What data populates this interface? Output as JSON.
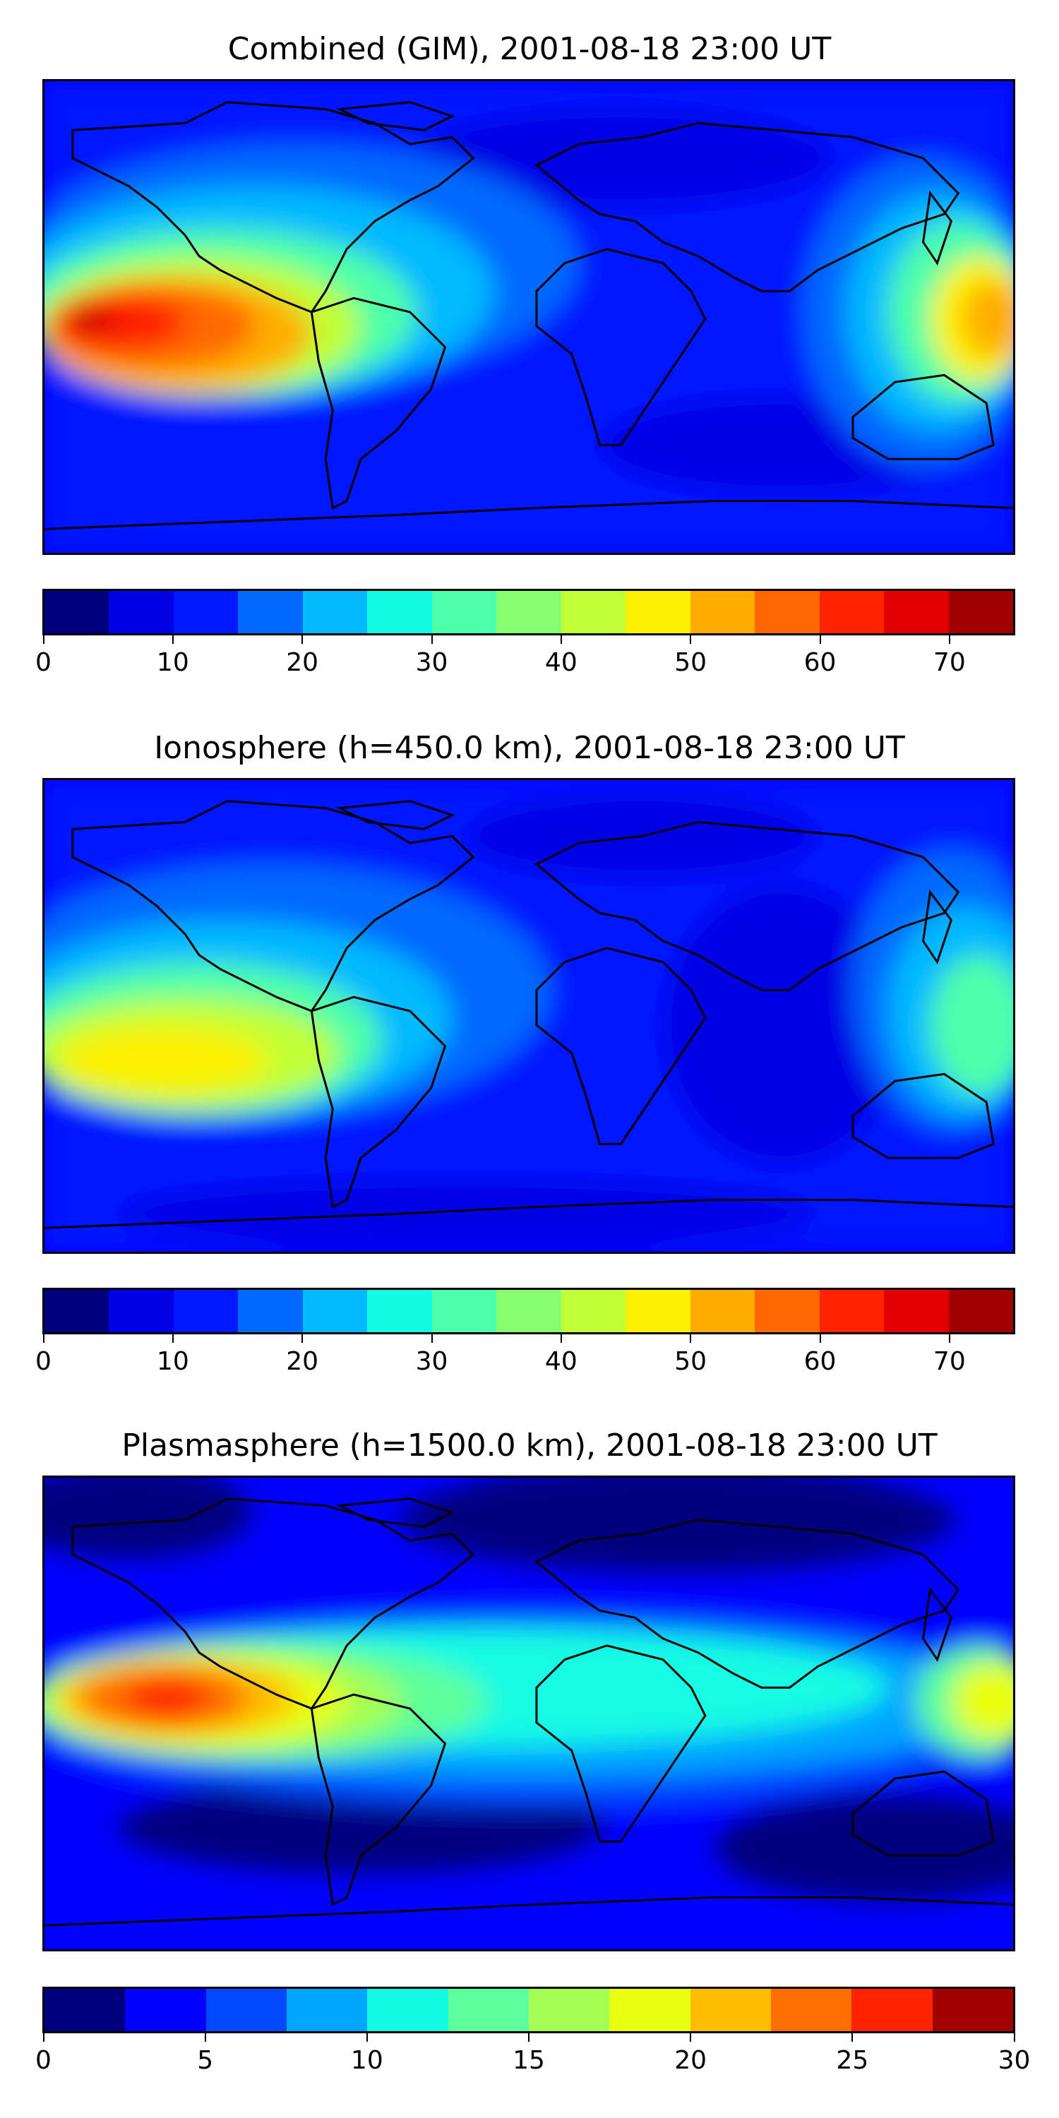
{
  "panels": [
    {
      "title": "Combined (GIM), 2001-08-18 23:00 UT",
      "colorbar": {
        "colors": [
          "#00007f",
          "#0000e5",
          "#0019ff",
          "#0069ff",
          "#00b9ff",
          "#13fbe3",
          "#4dffaa",
          "#87ff70",
          "#c0ff36",
          "#fbf100",
          "#ffad00",
          "#ff6800",
          "#ff2300",
          "#e30000",
          "#9f0000"
        ],
        "ticks": [
          "0",
          "10",
          "20",
          "30",
          "40",
          "50",
          "60",
          "70"
        ],
        "range": [
          0,
          75
        ]
      }
    },
    {
      "title": "Ionosphere  (h=450.0 km), 2001-08-18 23:00 UT",
      "colorbar": {
        "colors": [
          "#00007f",
          "#0000e5",
          "#0019ff",
          "#0069ff",
          "#00b9ff",
          "#13fbe3",
          "#4dffaa",
          "#87ff70",
          "#c0ff36",
          "#fbf100",
          "#ffad00",
          "#ff6800",
          "#ff2300",
          "#e30000",
          "#9f0000"
        ],
        "ticks": [
          "0",
          "10",
          "20",
          "30",
          "40",
          "50",
          "60",
          "70"
        ],
        "range": [
          0,
          75
        ]
      }
    },
    {
      "title": "Plasmasphere (h=1500.0 km), 2001-08-18 23:00 UT",
      "colorbar": {
        "colors": [
          "#00007f",
          "#0000ff",
          "#0049ff",
          "#00a5ff",
          "#13fbe3",
          "#5dff9a",
          "#a4ff53",
          "#e8ff0f",
          "#ffbd00",
          "#ff6f00",
          "#ff2200",
          "#a10000"
        ],
        "ticks": [
          "0",
          "5",
          "10",
          "15",
          "20",
          "25",
          "30"
        ],
        "range": [
          0,
          30
        ]
      }
    }
  ]
}
